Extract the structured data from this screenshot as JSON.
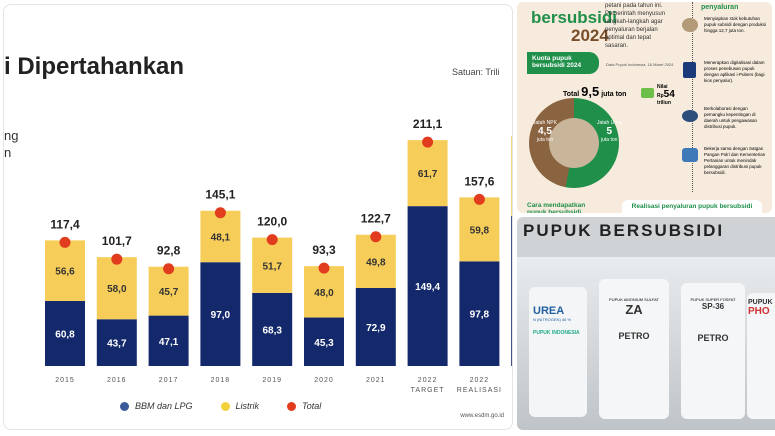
{
  "left_panel": {
    "title": "i Dipertahankan",
    "unit": "Satuan: Trili",
    "side_text": [
      "ng",
      "n"
    ],
    "source": "www.esdm.go.id"
  },
  "chart_data": {
    "type": "bar",
    "stacked": true,
    "categories": [
      "2015",
      "2016",
      "2017",
      "2018",
      "2019",
      "2020",
      "2021",
      "2022 TARGET",
      "2022 REALISASI"
    ],
    "series": [
      {
        "name": "BBM dan LPG",
        "color": "#14296b",
        "values": [
          60.8,
          43.7,
          47.1,
          97.0,
          68.3,
          45.3,
          72.9,
          149.4,
          97.8
        ]
      },
      {
        "name": "Listrik",
        "color": "#f7cd5a",
        "values": [
          56.6,
          58.0,
          45.7,
          48.1,
          51.7,
          48.0,
          49.8,
          61.7,
          59.8
        ]
      },
      {
        "name": "Total",
        "color": "#e23c1e",
        "values": [
          117.4,
          101.7,
          92.8,
          145.1,
          120.0,
          93.3,
          122.7,
          211.1,
          157.6
        ]
      }
    ],
    "labels_bbm": [
      "60,8",
      "43,7",
      "47,1",
      "97,0",
      "68,3",
      "45,3",
      "72,9",
      "149,4",
      "97,8"
    ],
    "labels_listrik": [
      "56,6",
      "58,0",
      "45,7",
      "48,1",
      "51,7",
      "48,0",
      "49,8",
      "61,7",
      "59,8"
    ],
    "labels_total": [
      "117,4",
      "101,7",
      "92,8",
      "145,1",
      "120,0",
      "93,3",
      "122,7",
      "211,1",
      "157,6"
    ],
    "legend": "bottom",
    "grid": false
  },
  "infographic": {
    "heading": "bersubsidi",
    "year": "2024",
    "intro": [
      "petani pada tahun ini.",
      "Pemerintah menyusun",
      "langkah-langkah agar",
      "penyaluran berjalan",
      "optimal dan tepat",
      "sasaran."
    ],
    "quota_label": "Kuota pupuk bersubsidi 2024",
    "source": "Data Pupuk Indonesia, 18 Maret 2024",
    "total_prefix": "Total",
    "total_value": "9,5",
    "total_unit": "juta ton",
    "npk_label": "Jatah NPK",
    "npk_value": "4,5",
    "npk_unit": "juta ton",
    "urea_label": "Jatah Urea",
    "urea_value": "5",
    "urea_unit": "juta ton",
    "nilai_label": "Nilai",
    "nilai_prefix": "Rp",
    "nilai_value": "54",
    "nilai_unit": "triliun",
    "steps_title": "penyaluran",
    "steps": [
      "Menyiapkan stok kebutuhan pupuk subsidi dengan produksi hingga 12,7 juta ton.",
      "Menerapkan digitalisasi dalam proses penebusan pupuk dengan aplikasi i-Pubers (bagi kios penyalur).",
      "Berkolaborasi dengan pemangku kepentingan di daerah untuk pengawasan distribusi pupuk.",
      "Bekerja sama dengan Satgas Pangan Polri dan Kementerian Pertanian untuk menindak pelanggaran distribusi pupuk bersubsidi."
    ],
    "bottom_left": "Cara mendapatkan pupuk bersubsidi",
    "bottom_right": "Realisasi penyaluran pupuk bersubsidi"
  },
  "photo": {
    "banner": "PUPUK BERSUBSIDI",
    "sacks": [
      {
        "name": "UREA",
        "sub": "N (NITROGEN) 46 %",
        "brand": "PUPUK INDONESIA"
      },
      {
        "name": "ZA",
        "sub": "PUPUK AMONIUM SULFAT",
        "brand": "PETRO"
      },
      {
        "name": "SP-36",
        "sub": "PUPUK SUPER FOSFAT",
        "brand": "PETRO"
      },
      {
        "name": "PHO",
        "sub": "PUPUK",
        "brand": ""
      }
    ]
  }
}
